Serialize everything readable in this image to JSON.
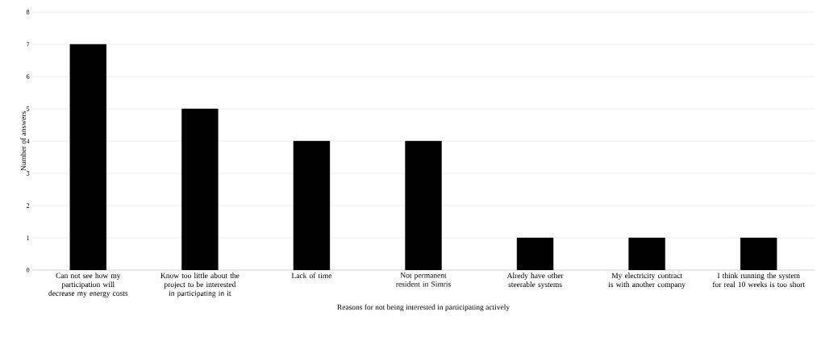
{
  "chart_data": {
    "type": "bar",
    "xlabel": "Reasons for not being interested in participating actively",
    "ylabel": "Number of answers",
    "categories": [
      "Can not see how my participation will decrease my energy costs",
      "Know too little about the project to be interested in participating in it",
      "Lack of time",
      "Not permanent resident in Simris",
      "Alredy have other steerable systems",
      "My electricity contract is with another company",
      "I think running the system for real 10 weeks is too short"
    ],
    "values": [
      7,
      5,
      4,
      4,
      1,
      1,
      1
    ],
    "color": "#000000",
    "ylim": [
      0,
      8
    ],
    "yticks": [
      0,
      1,
      2,
      3,
      4,
      5,
      6,
      7,
      8
    ],
    "grid": "y"
  }
}
